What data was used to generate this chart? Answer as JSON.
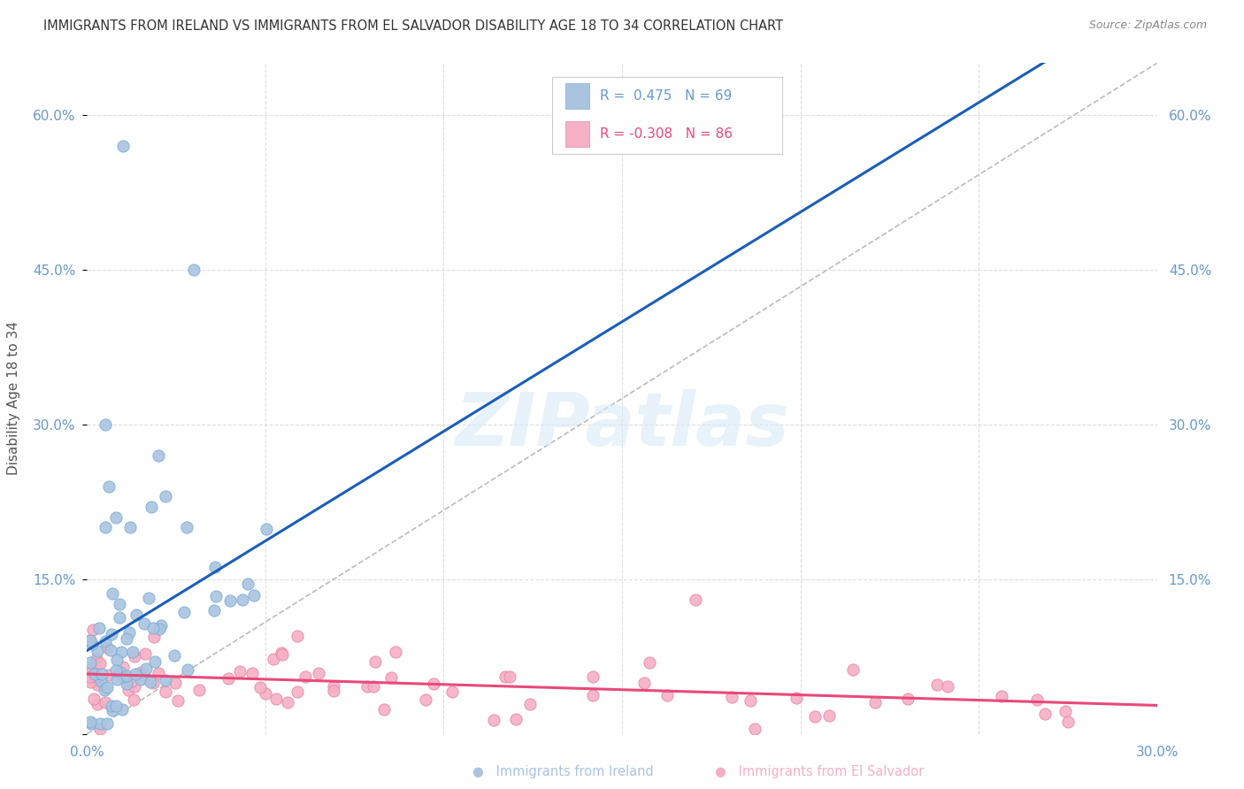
{
  "title": "IMMIGRANTS FROM IRELAND VS IMMIGRANTS FROM EL SALVADOR DISABILITY AGE 18 TO 34 CORRELATION CHART",
  "source": "Source: ZipAtlas.com",
  "ylabel": "Disability Age 18 to 34",
  "xlim": [
    0.0,
    0.3
  ],
  "ylim": [
    0.0,
    0.65
  ],
  "ireland_color": "#aac4e0",
  "ireland_edge_color": "#7aaed4",
  "ireland_line_color": "#1a5eb8",
  "elsalvador_color": "#f5b0c5",
  "elsalvador_edge_color": "#e888a8",
  "elsalvador_line_color": "#e8497a",
  "reference_line_color": "#bbbbbb",
  "legend_ireland_R": "0.475",
  "legend_ireland_N": "69",
  "legend_elsalvador_R": "-0.308",
  "legend_elsalvador_N": "86",
  "legend_label_ireland": "Immigrants from Ireland",
  "legend_label_elsalvador": "Immigrants from El Salvador",
  "watermark": "ZIPatlas",
  "background_color": "#ffffff",
  "grid_color": "#dddddd",
  "title_color": "#333333",
  "axis_color": "#6699cc",
  "legend_text_color": "#333333"
}
